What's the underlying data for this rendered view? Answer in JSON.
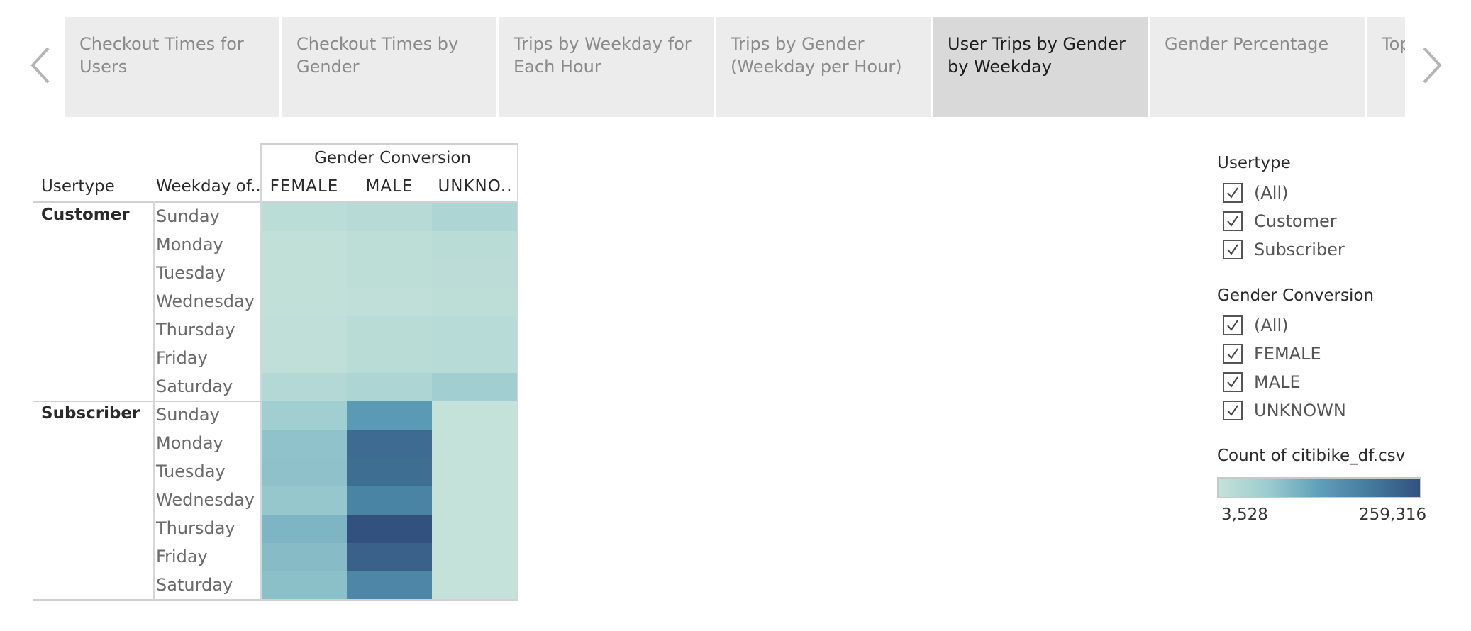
{
  "tabs": [
    {
      "label": "Checkout Times for Users"
    },
    {
      "label": "Checkout Times by Gender"
    },
    {
      "label": "Trips by Weekday for Each Hour"
    },
    {
      "label": "Trips by Gender (Weekday per Hour)"
    },
    {
      "label": "User Trips by Gender by Weekday",
      "active": true
    },
    {
      "label": "Gender Percentage"
    },
    {
      "label": "Top"
    }
  ],
  "chart_data": {
    "type": "heatmap",
    "column_group_title": "Gender Conversion",
    "row_headers": [
      "Usertype",
      "Weekday of.."
    ],
    "columns": [
      "FEMALE",
      "MALE",
      "UNKNO.."
    ],
    "rows": [
      "Sunday",
      "Monday",
      "Tuesday",
      "Wednesday",
      "Thursday",
      "Friday",
      "Saturday"
    ],
    "groups": [
      {
        "name": "Customer",
        "values": [
          [
            18000,
            25000,
            40000
          ],
          [
            10000,
            16000,
            20000
          ],
          [
            10000,
            15000,
            17000
          ],
          [
            9000,
            12000,
            14000
          ],
          [
            11000,
            20000,
            24000
          ],
          [
            11000,
            21000,
            24000
          ],
          [
            30000,
            40000,
            60000
          ]
        ]
      },
      {
        "name": "Subscriber",
        "values": [
          [
            60000,
            140000,
            3528
          ],
          [
            80000,
            220000,
            3700
          ],
          [
            82000,
            215000,
            3800
          ],
          [
            74000,
            180000,
            3600
          ],
          [
            100000,
            259316,
            3900
          ],
          [
            90000,
            235000,
            3800
          ],
          [
            84000,
            175000,
            3700
          ]
        ]
      }
    ],
    "color_min": 3528,
    "color_max": 259316,
    "color_scale": [
      "#c4e2d9",
      "#9ccbcf",
      "#5f9fb9",
      "#447b9d",
      "#33517e"
    ]
  },
  "filters": {
    "usertype": {
      "title": "Usertype",
      "items": [
        "(All)",
        "Customer",
        "Subscriber"
      ]
    },
    "gender": {
      "title": "Gender Conversion",
      "items": [
        "(All)",
        "FEMALE",
        "MALE",
        "UNKNOWN"
      ]
    }
  },
  "legend": {
    "title": "Count of citibike_df.csv",
    "min_label": "3,528",
    "max_label": "259,316"
  }
}
